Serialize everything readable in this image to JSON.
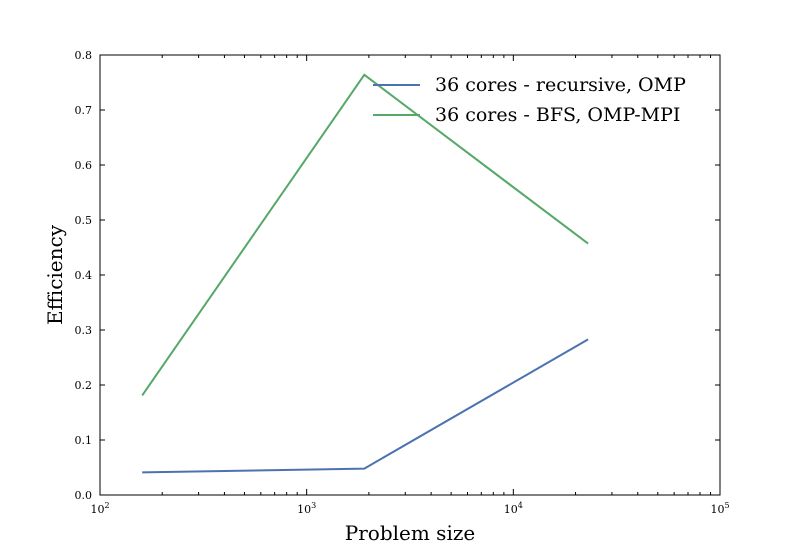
{
  "chart_data": {
    "type": "line",
    "title": "",
    "xlabel": "Problem size",
    "ylabel": "Efficiency",
    "xscale": "log",
    "xlim": [
      100,
      100000
    ],
    "ylim": [
      0,
      0.8
    ],
    "x_ticks": [
      {
        "base": "10",
        "exp": "2",
        "value": 100
      },
      {
        "base": "10",
        "exp": "3",
        "value": 1000
      },
      {
        "base": "10",
        "exp": "4",
        "value": 10000
      },
      {
        "base": "10",
        "exp": "5",
        "value": 100000
      }
    ],
    "y_ticks": [
      "0.0",
      "0.1",
      "0.2",
      "0.3",
      "0.4",
      "0.5",
      "0.6",
      "0.7",
      "0.8"
    ],
    "grid": false,
    "legend_position": "top-right",
    "series": [
      {
        "name": "36 cores - recursive, OMP",
        "color": "#4c72b0",
        "x": [
          160,
          1900,
          23000
        ],
        "y": [
          0.041,
          0.048,
          0.283
        ]
      },
      {
        "name": "36 cores - BFS, OMP-MPI",
        "color": "#55a868",
        "x": [
          160,
          1900,
          23000
        ],
        "y": [
          0.181,
          0.764,
          0.457
        ]
      }
    ]
  }
}
